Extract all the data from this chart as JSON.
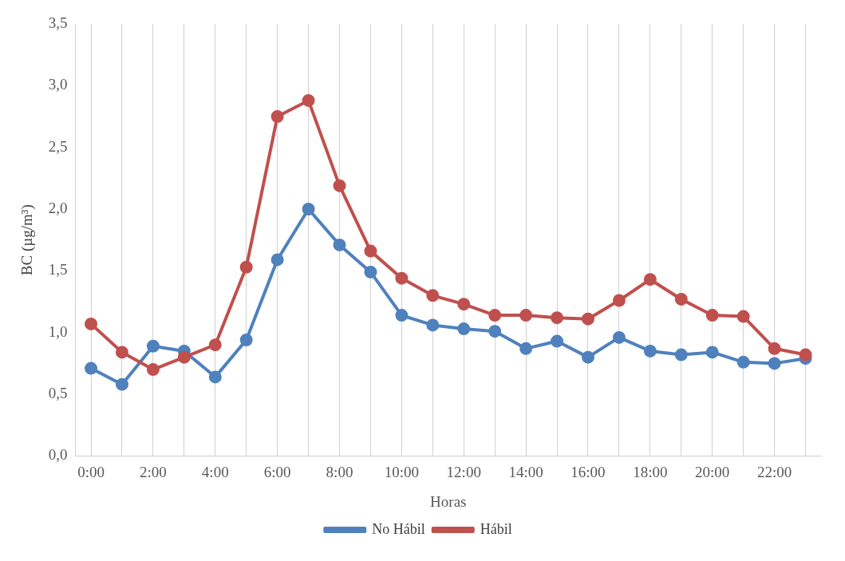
{
  "chart_data": {
    "type": "line",
    "xlabel": "Horas",
    "ylabel": "BC (µg/m³)",
    "categories": [
      "0:00",
      null,
      "2:00",
      null,
      "4:00",
      null,
      "6:00",
      null,
      "8:00",
      null,
      "10:00",
      null,
      "12:00",
      null,
      "14:00",
      null,
      "16:00",
      null,
      "18:00",
      null,
      "20:00",
      null,
      "22:00",
      null
    ],
    "series": [
      {
        "name": "No Hábil",
        "color": "#4f81bd",
        "values": [
          0.71,
          0.58,
          0.89,
          0.85,
          0.64,
          0.94,
          1.59,
          2.0,
          1.71,
          1.49,
          1.14,
          1.06,
          1.03,
          1.01,
          0.87,
          0.93,
          0.8,
          0.96,
          0.85,
          0.82,
          0.84,
          0.76,
          0.75,
          0.79
        ]
      },
      {
        "name": "Hábil",
        "color": "#c0504d",
        "values": [
          1.07,
          0.84,
          0.7,
          0.8,
          0.9,
          1.53,
          2.75,
          2.88,
          2.19,
          1.66,
          1.44,
          1.3,
          1.23,
          1.14,
          1.14,
          1.12,
          1.11,
          1.26,
          1.43,
          1.27,
          1.14,
          1.13,
          0.87,
          0.82
        ]
      }
    ],
    "ylim": [
      0,
      3.5
    ],
    "yticks": [
      {
        "value": 0,
        "label": "0,0"
      },
      {
        "value": 0.5,
        "label": "0,5"
      },
      {
        "value": 1,
        "label": "1,0"
      },
      {
        "value": 1.5,
        "label": "1,5"
      },
      {
        "value": 2,
        "label": "2,0"
      },
      {
        "value": 2.5,
        "label": "2,5"
      },
      {
        "value": 3,
        "label": "3,0"
      },
      {
        "value": 3.5,
        "label": "3,5"
      }
    ],
    "grid": "x",
    "legend": "bottom",
    "marker": "circle",
    "line_style": "solid"
  }
}
